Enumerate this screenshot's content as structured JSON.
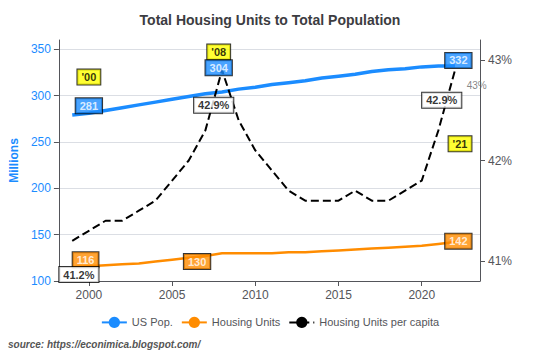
{
  "chart_data": {
    "type": "line",
    "title": "Total Housing Units to Total Population",
    "x": [
      1999,
      2000,
      2001,
      2002,
      2003,
      2004,
      2005,
      2006,
      2007,
      2008,
      2009,
      2010,
      2011,
      2012,
      2013,
      2014,
      2015,
      2016,
      2017,
      2018,
      2019,
      2020,
      2021,
      2022
    ],
    "series": [
      {
        "name": "US Pop.",
        "color": "#1b8cff",
        "values": [
          279,
          281,
          284,
          287,
          290,
          293,
          296,
          299,
          302,
          304,
          307,
          309,
          312,
          314,
          316,
          319,
          321,
          323,
          326,
          328,
          329,
          331,
          332,
          332
        ]
      },
      {
        "name": "Housing Units",
        "color": "#ff8c00",
        "values": [
          115,
          116,
          117,
          118,
          119,
          121,
          123,
          125,
          127,
          130,
          130,
          130,
          130,
          131,
          131,
          132,
          133,
          134,
          135,
          136,
          137,
          138,
          140,
          142
        ]
      },
      {
        "name": "Housing Units per capita",
        "color": "#000000",
        "axis": "y2",
        "line_style": "dashed",
        "values": [
          41.2,
          41.3,
          41.4,
          41.4,
          41.5,
          41.6,
          41.8,
          42.0,
          42.3,
          42.9,
          42.4,
          42.1,
          41.9,
          41.7,
          41.6,
          41.6,
          41.6,
          41.7,
          41.6,
          41.6,
          41.7,
          41.8,
          42.3,
          42.9
        ]
      }
    ],
    "xlim": [
      1998.2,
      2023.5
    ],
    "xticks": [
      2000,
      2005,
      2010,
      2015,
      2020
    ],
    "ylim": [
      100,
      360
    ],
    "yticks": [
      100,
      150,
      200,
      250,
      300,
      350
    ],
    "ylabel": "Millions",
    "y2lim": [
      40.8,
      43.2
    ],
    "y2ticks": [
      {
        "value": 41,
        "label": "41%"
      },
      {
        "value": 42,
        "label": "42%"
      },
      {
        "value": 43,
        "label": "43%"
      }
    ],
    "grid": true,
    "legend": "bottom",
    "annotations": [
      {
        "text": "'00",
        "x": 2000.0,
        "y": 320,
        "color": "#ffff00"
      },
      {
        "text": "281",
        "x": 2000.0,
        "y": 289,
        "color": "#1b8cff"
      },
      {
        "text": "'08",
        "x": 2007.8,
        "y": 347,
        "color": "#ffff00"
      },
      {
        "text": "304",
        "x": 2007.8,
        "y": 330,
        "color": "#1b8cff"
      },
      {
        "text": "42.9%",
        "x": 2007.5,
        "y": 42.55,
        "axis": "y2",
        "color": "#ffffff"
      },
      {
        "text": "332",
        "x": 2022.2,
        "y": 338,
        "color": "#1b8cff"
      },
      {
        "text": "42.9%",
        "x": 2021.2,
        "y": 42.6,
        "axis": "y2",
        "color": "#ffffff"
      },
      {
        "text": "43%",
        "x": 2023.3,
        "y": 42.75,
        "axis": "y2"
      },
      {
        "text": "'21",
        "x": 2022.3,
        "y": 248,
        "color": "#ffff00"
      },
      {
        "text": "116",
        "x": 1999.8,
        "y": 123,
        "color": "#ff8c00"
      },
      {
        "text": "41.2%",
        "x": 1999.4,
        "y": 107,
        "color": "#ffffff"
      },
      {
        "text": "130",
        "x": 2006.5,
        "y": 121,
        "color": "#ff8c00"
      },
      {
        "text": "142",
        "x": 2022.2,
        "y": 143,
        "color": "#ff8c00"
      }
    ],
    "source": "source: https://econimica.blogspot.com/"
  }
}
